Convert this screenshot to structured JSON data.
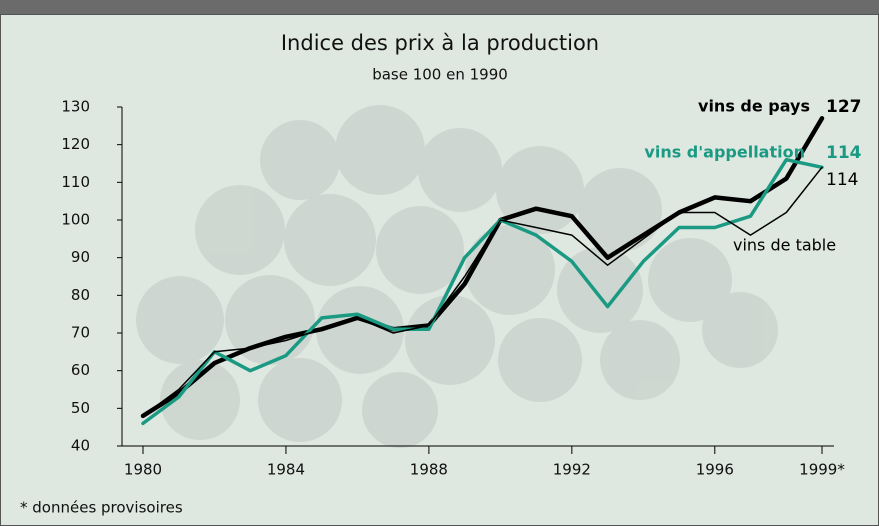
{
  "chart_data": {
    "type": "line",
    "title": "Indice des prix à la production",
    "subtitle": "base 100 en 1990",
    "footnote": "* données provisoires",
    "x": [
      1980,
      1981,
      1982,
      1983,
      1984,
      1985,
      1986,
      1987,
      1988,
      1989,
      1990,
      1991,
      1992,
      1993,
      1994,
      1995,
      1996,
      1997,
      1998,
      1999
    ],
    "series": [
      {
        "name": "vins de pays",
        "color": "#000000",
        "width": 4.5,
        "values": [
          48,
          54,
          62,
          66,
          69,
          71,
          74,
          71,
          72,
          83,
          100,
          103,
          101,
          90,
          96,
          102,
          106,
          105,
          111,
          127
        ]
      },
      {
        "name": "vins d'appellation",
        "color": "#1a9a82",
        "width": 3.5,
        "values": [
          46,
          53,
          65,
          60,
          64,
          74,
          75,
          71,
          71,
          90,
          100,
          96,
          89,
          77,
          89,
          98,
          98,
          101,
          116,
          114
        ]
      },
      {
        "name": "vins de table",
        "color": "#000000",
        "width": 1.5,
        "values": [
          48,
          55,
          65,
          66,
          68,
          71,
          74,
          70,
          72,
          85,
          100,
          98,
          96,
          88,
          95,
          102,
          102,
          96,
          102,
          114
        ]
      }
    ],
    "xlim": [
      1980,
      1999
    ],
    "ylim": [
      40,
      130
    ],
    "xticks": [
      1980,
      1984,
      1988,
      1992,
      1996,
      {
        "value": 1999,
        "label": "1999*"
      }
    ],
    "yticks": [
      40,
      50,
      60,
      70,
      80,
      90,
      100,
      110,
      120,
      130
    ]
  }
}
